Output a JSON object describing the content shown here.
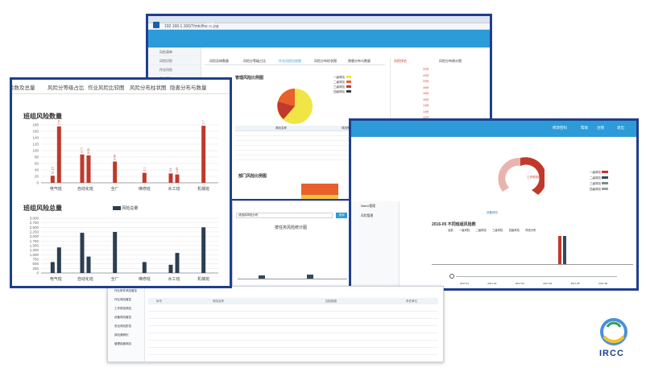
{
  "main_window": {
    "url": "192.168.1.166/?/mtc/frame.jsp",
    "app_title": "",
    "nav_label": "首页",
    "tabs": [
      "风险总体数量",
      "风险分等级占比",
      "作业风险比较图",
      "风险分布柱状图",
      "隐患分布与数量"
    ],
    "chart_title": "管理风险比例图",
    "chart2_title": "部门风险比例图",
    "legend": [
      "一级风险",
      "二级风险",
      "三级风险",
      "四级风险"
    ],
    "pie_legend_colors": [
      "#f4e33b",
      "#e8602c",
      "#c0392b",
      "#2c3e50"
    ],
    "table_headers": [
      "风险名称",
      "风险等级",
      "责任单位"
    ],
    "right_panel_tabs": [
      "风险排名",
      "风险分布统计图"
    ],
    "right_panel_values": [
      "22分",
      "22分",
      "22分",
      "16分",
      "15分",
      "15分",
      "14分",
      "14分",
      "12分",
      "12分"
    ],
    "sidebar": [
      "风险清单",
      "风险识别",
      "作业风险",
      "风险管控"
    ]
  },
  "left_window": {
    "tabs": [
      "险数及总量",
      "风险分等级占比",
      "作业风险比较图",
      "风险分布柱状图",
      "隐患分布与数量"
    ],
    "chart_data": [
      {
        "type": "bar",
        "title": "班组风险数量",
        "categories": [
          "电气班",
          "自动化班",
          "全厂",
          "维修班",
          "水工班",
          "机械班"
        ],
        "series": [
          {
            "values": [
              22,
              88,
              66,
              31,
              29,
              177
            ],
            "color": "#c0392b"
          },
          {
            "values": [
              175,
              85,
              null,
              null,
              26,
              null
            ],
            "color": "#c0392b"
          }
        ],
        "ylim": [
          0,
          180
        ],
        "yticks": [
          0,
          20,
          40,
          60,
          80,
          100,
          120,
          140,
          160,
          180
        ],
        "bar_labels": [
          [
            "21:15",
            "1750"
          ],
          [
            "9.77",
            "8.55"
          ],
          [
            "6.66"
          ],
          [
            "3.1"
          ],
          [
            "2.9",
            "2.69"
          ],
          [
            "1.77"
          ]
        ]
      },
      {
        "type": "bar",
        "title": "班组风险总量",
        "legend": [
          "风险总量"
        ],
        "categories": [
          "电气班",
          "自动化班",
          "全厂",
          "维修班",
          "水工班",
          "机械班"
        ],
        "series": [
          {
            "values": [
              600,
              2200,
              2250,
              600,
              450,
              2500
            ],
            "color": "#2c3e50"
          },
          {
            "values": [
              1400,
              900,
              null,
              null,
              1100,
              null
            ],
            "color": "#2c3e50"
          }
        ],
        "ylim": [
          0,
          3000
        ],
        "yticks": [
          "0",
          "250",
          "500",
          "750",
          "1,000",
          "1,250",
          "1,500",
          "1,750",
          "2,000",
          "2,250",
          "2,500",
          "2,750",
          "3,000"
        ]
      }
    ]
  },
  "right_window": {
    "header_links": [
      "修改密码",
      "帮助",
      "注销",
      "退出"
    ],
    "legend": [
      "全部",
      "一级风险",
      "二级风险",
      "三级风险",
      "四级风险",
      "风险分布"
    ],
    "legend_colors": [
      "#c0392b",
      "#34495e",
      "#7f8c8d",
      "#e67e22",
      "#95a5a6",
      "#2980b9"
    ],
    "chart_title": "2016-05 不同班组风险数",
    "timeline": [
      "2017-01",
      "2017-02",
      "2017-03",
      "2017-04",
      "2017-05",
      "2017-06"
    ],
    "sidebar": [
      "Matrix管理",
      "风险管理"
    ],
    "donut_labels": [
      "工作规范风险",
      "设备风险"
    ]
  },
  "mid_window": {
    "select_placeholder": "请选择风险分布",
    "button": "查询",
    "chart_title": "按任务风险统计图"
  },
  "bottom_window": {
    "sidebar": [
      "作业条件风险管控",
      "作业风险管控",
      "工作规范风险",
      "设备风险管控",
      "安全风险防范",
      "风险源辨识",
      "管理制度风险"
    ],
    "headers": [
      "序号",
      "风险名称",
      "控制措施",
      "责任单位"
    ]
  },
  "logo": {
    "text": "IRCC"
  }
}
